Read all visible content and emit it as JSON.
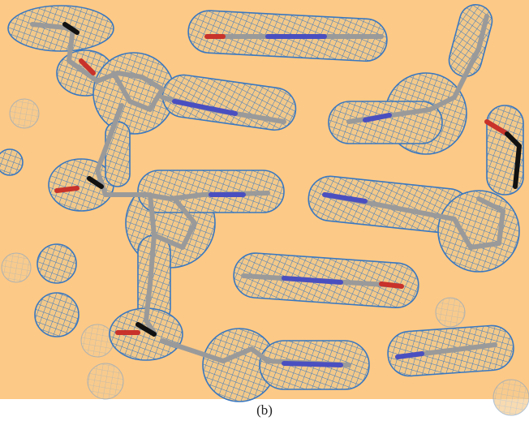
{
  "image": {
    "caption": "(b)"
  }
}
